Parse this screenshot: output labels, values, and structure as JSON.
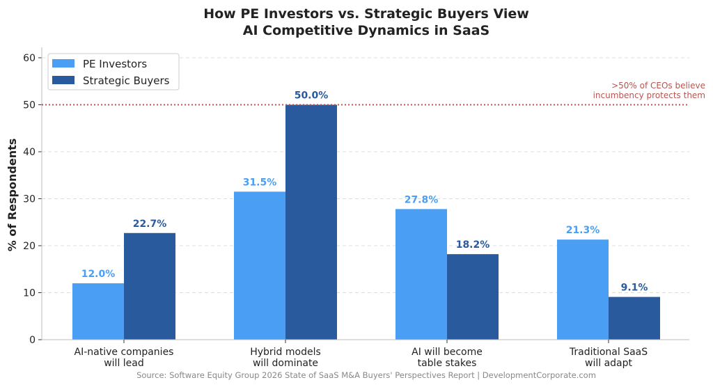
{
  "chart_data": {
    "type": "bar",
    "title_line1": "How PE Investors vs. Strategic Buyers View",
    "title_line2": "AI Competitive Dynamics in SaaS",
    "ylabel": "% of Respondents",
    "xlabel": "",
    "ylim": [
      0,
      60
    ],
    "yticks": [
      "0",
      "10",
      "20",
      "30",
      "40",
      "50",
      "60"
    ],
    "grid": true,
    "legend_position": "top-left",
    "categories": [
      [
        "AI-native companies",
        "will lead"
      ],
      [
        "Hybrid models",
        "will dominate"
      ],
      [
        "AI will become",
        "table stakes"
      ],
      [
        "Traditional SaaS",
        "will adapt"
      ]
    ],
    "series": [
      {
        "name": "PE Investors",
        "color": "#4a9ff5",
        "values": [
          12.0,
          31.5,
          27.8,
          21.3
        ],
        "labels": [
          "12.0%",
          "31.5%",
          "27.8%",
          "21.3%"
        ]
      },
      {
        "name": "Strategic Buyers",
        "color": "#2a5a9e",
        "values": [
          22.7,
          50.0,
          18.2,
          9.1
        ],
        "labels": [
          "22.7%",
          "50.0%",
          "18.2%",
          "9.1%"
        ]
      }
    ],
    "reference_line": {
      "value": 50,
      "color": "#c0504d",
      "annotation_line1": ">50% of CEOs believe",
      "annotation_line2": "incumbency protects them"
    },
    "source": "Source: Software Equity Group 2026 State of SaaS M&A Buyers' Perspectives Report | DevelopmentCorporate.com"
  }
}
